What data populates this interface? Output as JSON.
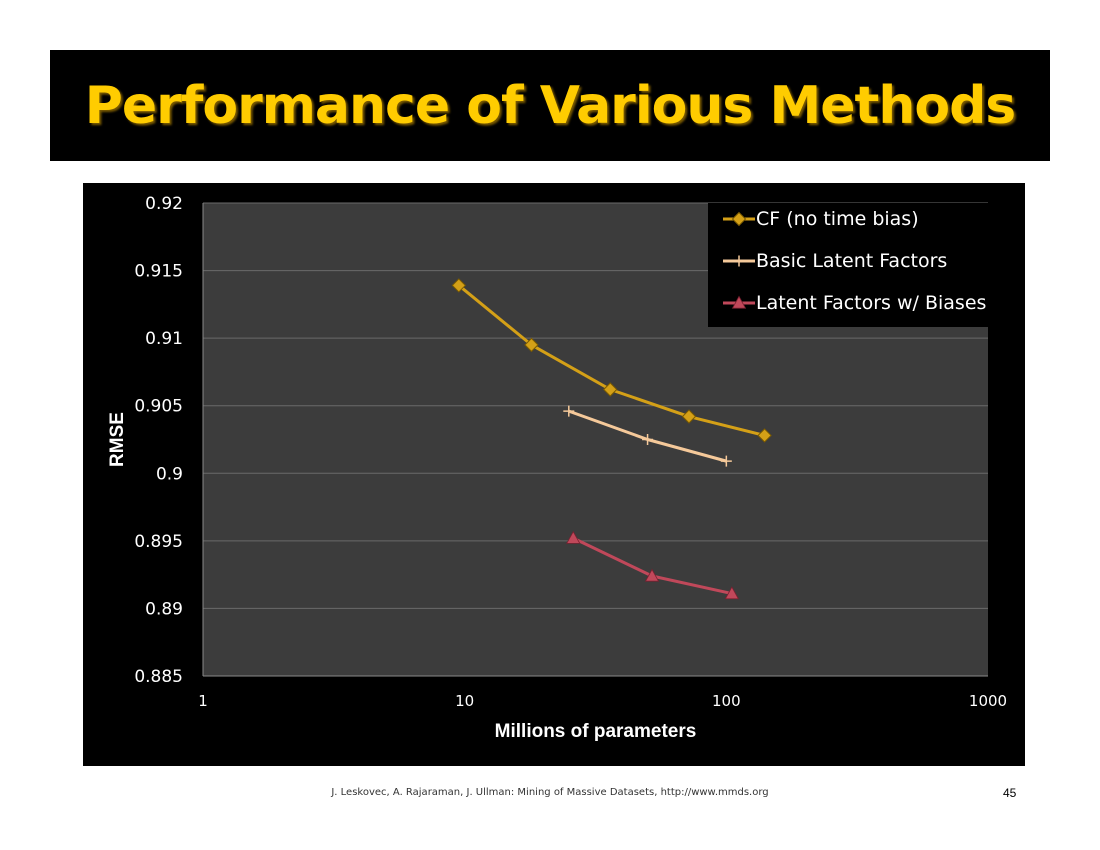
{
  "slide": {
    "title": "Performance of Various Methods",
    "footer": "J. Leskovec, A. Rajaraman, J. Ullman: Mining of Massive Datasets, http://www.mmds.org",
    "page_number": "45"
  },
  "colors": {
    "title": "#ffcc00",
    "chart_background": "#000000",
    "plot_background": "#3c3c3c",
    "gridline": "#6a6a6a",
    "text": "#ffffff"
  },
  "chart_data": {
    "type": "line",
    "xlabel": "Millions of parameters",
    "ylabel": "RMSE",
    "x_scale": "log",
    "xlim": [
      1,
      1000
    ],
    "ylim": [
      0.885,
      0.92
    ],
    "x_ticks": [
      1,
      10,
      100,
      1000
    ],
    "x_tick_labels": [
      "1",
      "10",
      "100",
      "1000"
    ],
    "y_ticks": [
      0.885,
      0.89,
      0.895,
      0.9,
      0.905,
      0.91,
      0.915,
      0.92
    ],
    "y_tick_labels": [
      "0.885",
      "0.89",
      "0.895",
      "0.9",
      "0.905",
      "0.91",
      "0.915",
      "0.92"
    ],
    "grid": "horizontal",
    "legend_position": "top-right",
    "series": [
      {
        "name": "CF (no time bias)",
        "color": "#d4a017",
        "marker": "diamond",
        "x": [
          9.5,
          18,
          36,
          72,
          140
        ],
        "y": [
          0.9139,
          0.9095,
          0.9062,
          0.9042,
          0.9028
        ]
      },
      {
        "name": "Basic Latent Factors",
        "color": "#f5c99a",
        "marker": "plus",
        "x": [
          25,
          50,
          100
        ],
        "y": [
          0.9046,
          0.9025,
          0.9009
        ]
      },
      {
        "name": "Latent Factors w/ Biases",
        "color": "#c0485a",
        "marker": "triangle",
        "x": [
          26,
          52,
          105
        ],
        "y": [
          0.8952,
          0.8924,
          0.8911
        ]
      }
    ]
  }
}
